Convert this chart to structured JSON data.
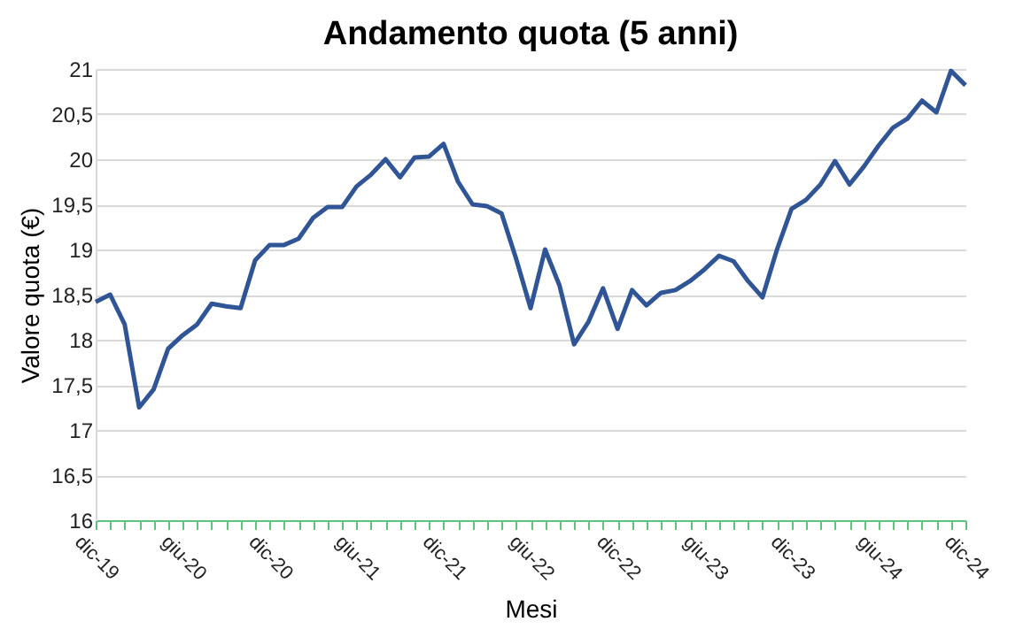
{
  "chart_data": {
    "type": "line",
    "title": "Andamento quota (5 anni)",
    "xlabel": "Mesi",
    "ylabel": "Valore quota (€)",
    "categories": [
      "dic-19",
      null,
      null,
      null,
      null,
      null,
      "giu-20",
      null,
      null,
      null,
      null,
      null,
      "dic-20",
      null,
      null,
      null,
      null,
      null,
      "giu-21",
      null,
      null,
      null,
      null,
      null,
      "dic-21",
      null,
      null,
      null,
      null,
      null,
      "giu-22",
      null,
      null,
      null,
      null,
      null,
      "dic-22",
      null,
      null,
      null,
      null,
      null,
      "giu-23",
      null,
      null,
      null,
      null,
      null,
      "dic-23",
      null,
      null,
      null,
      null,
      null,
      "giu-24",
      null,
      null,
      null,
      null,
      null,
      "dic-24"
    ],
    "series": [
      {
        "color": "#2f5597",
        "values": [
          18.42,
          18.5,
          18.17,
          17.25,
          17.45,
          17.9,
          18.05,
          18.17,
          18.4,
          18.37,
          18.35,
          18.88,
          19.05,
          19.05,
          19.12,
          19.35,
          19.47,
          19.47,
          19.7,
          19.83,
          20.0,
          19.8,
          20.02,
          20.03,
          20.17,
          19.75,
          19.5,
          19.48,
          19.4,
          18.9,
          18.35,
          19.0,
          18.6,
          17.95,
          18.2,
          18.57,
          18.12,
          18.55,
          18.38,
          18.52,
          18.55,
          18.65,
          18.78,
          18.93,
          18.87,
          18.65,
          18.47,
          19.0,
          19.45,
          19.55,
          19.72,
          19.98,
          19.72,
          19.92,
          20.15,
          20.35,
          20.45,
          20.65,
          20.52,
          20.98,
          20.82
        ]
      }
    ],
    "ylim": [
      16,
      21
    ],
    "yticks": [
      16,
      {
        "value": 16.5,
        "label": "16,5"
      },
      17,
      {
        "value": 17.5,
        "label": "17,5"
      },
      18,
      {
        "value": 18.5,
        "label": "18,5"
      },
      19,
      {
        "value": 19.5,
        "label": "19,5"
      },
      20,
      {
        "value": 20.5,
        "label": "20,5"
      },
      21
    ],
    "grid": "y",
    "legend": false,
    "marker": "none",
    "line_style": "solid"
  }
}
